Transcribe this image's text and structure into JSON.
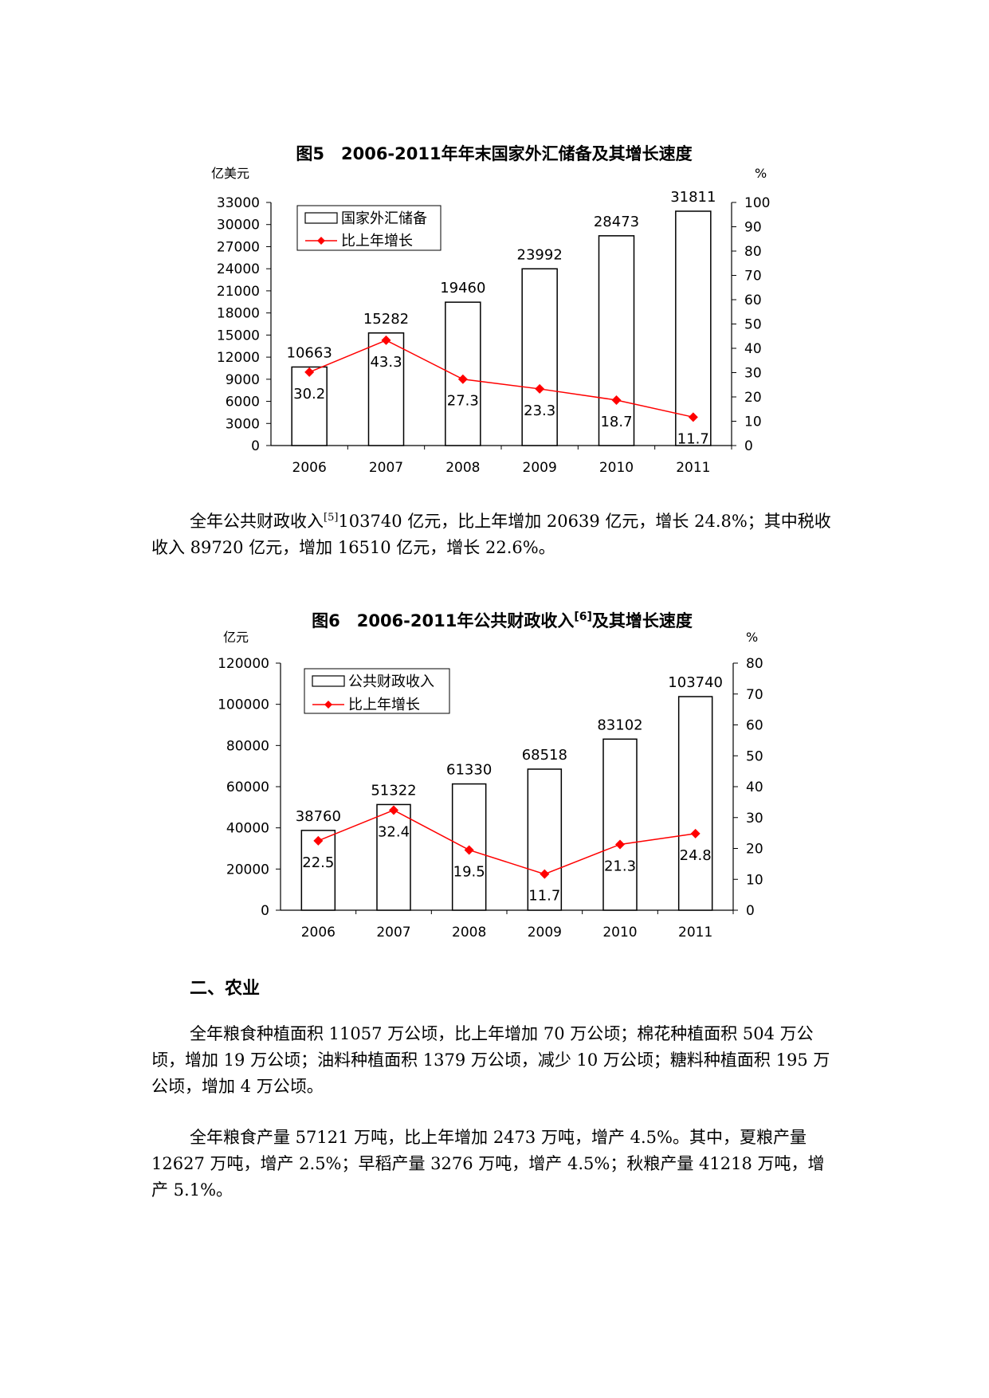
{
  "charts": [
    {
      "title": "图5　2006-2011年年末国家外汇储备及其增长速度",
      "unit_left": "亿美元",
      "unit_right": "%",
      "left_ticks": [
        "0",
        "3000",
        "6000",
        "9000",
        "12000",
        "15000",
        "18000",
        "21000",
        "24000",
        "27000",
        "30000",
        "33000"
      ],
      "right_ticks": [
        "0",
        "10",
        "20",
        "30",
        "40",
        "50",
        "60",
        "70",
        "80",
        "90",
        "100"
      ],
      "legend_bar": "国家外汇储备",
      "legend_line": "比上年增长",
      "colors": {
        "bar_fill": "#ffffff",
        "bar_stroke": "#000000",
        "line": "#ff0000"
      }
    },
    {
      "title_before_sup": "图6　2006-2011年公共财政收入",
      "title_sup": "[6]",
      "title_after_sup": "及其增长速度",
      "unit_left": "亿元",
      "unit_right": "%",
      "left_ticks": [
        "0",
        "20000",
        "40000",
        "60000",
        "80000",
        "100000",
        "120000"
      ],
      "right_ticks": [
        "0",
        "10",
        "20",
        "30",
        "40",
        "50",
        "60",
        "70",
        "80"
      ],
      "legend_bar": "公共财政收入",
      "legend_line": "比上年增长",
      "colors": {
        "bar_fill": "#ffffff",
        "bar_stroke": "#000000",
        "line": "#ff0000"
      }
    }
  ],
  "chart_data": [
    {
      "type": "bar",
      "title": "图5　2006-2011年年末国家外汇储备及其增长速度",
      "categories": [
        "2006",
        "2007",
        "2008",
        "2009",
        "2010",
        "2011"
      ],
      "series": [
        {
          "name": "国家外汇储备",
          "type": "bar",
          "axis": "left",
          "values": [
            10663,
            15282,
            19460,
            23992,
            28473,
            31811
          ]
        },
        {
          "name": "比上年增长",
          "type": "line",
          "axis": "right",
          "values": [
            30.2,
            43.3,
            27.3,
            23.3,
            18.7,
            11.7
          ]
        }
      ],
      "ylabel": "亿美元",
      "y2label": "%",
      "ylim": [
        0,
        33000
      ],
      "y2lim": [
        0,
        100
      ],
      "legend": "top-left"
    },
    {
      "type": "bar",
      "title": "图6　2006-2011年公共财政收入[6]及其增长速度",
      "categories": [
        "2006",
        "2007",
        "2008",
        "2009",
        "2010",
        "2011"
      ],
      "series": [
        {
          "name": "公共财政收入",
          "type": "bar",
          "axis": "left",
          "values": [
            38760,
            51322,
            61330,
            68518,
            83102,
            103740
          ]
        },
        {
          "name": "比上年增长",
          "type": "line",
          "axis": "right",
          "values": [
            22.5,
            32.4,
            19.5,
            11.7,
            21.3,
            24.8
          ]
        }
      ],
      "ylabel": "亿元",
      "y2label": "%",
      "ylim": [
        0,
        120000
      ],
      "y2lim": [
        0,
        80
      ],
      "legend": "top-left"
    }
  ],
  "text": {
    "para1_a": "全年公共财政收入",
    "para1_sup": "[5]",
    "para1_b": "103740 亿元，比上年增加 20639 亿元，增长 24.8%；其中税收收入 89720 亿元，增加 16510 亿元，增长 22.6%。",
    "section_heading": "二、农业",
    "para2": "全年粮食种植面积 11057 万公顷，比上年增加 70 万公顷；棉花种植面积 504 万公顷，增加 19 万公顷；油料种植面积 1379 万公顷，减少 10 万公顷；糖料种植面积 195 万公顷，增加 4 万公顷。",
    "para3": "全年粮食产量 57121 万吨，比上年增加 2473 万吨，增产 4.5%。其中，夏粮产量 12627 万吨，增产 2.5%；早稻产量 3276 万吨，增产 4.5%；秋粮产量 41218 万吨，增产 5.1%。"
  }
}
